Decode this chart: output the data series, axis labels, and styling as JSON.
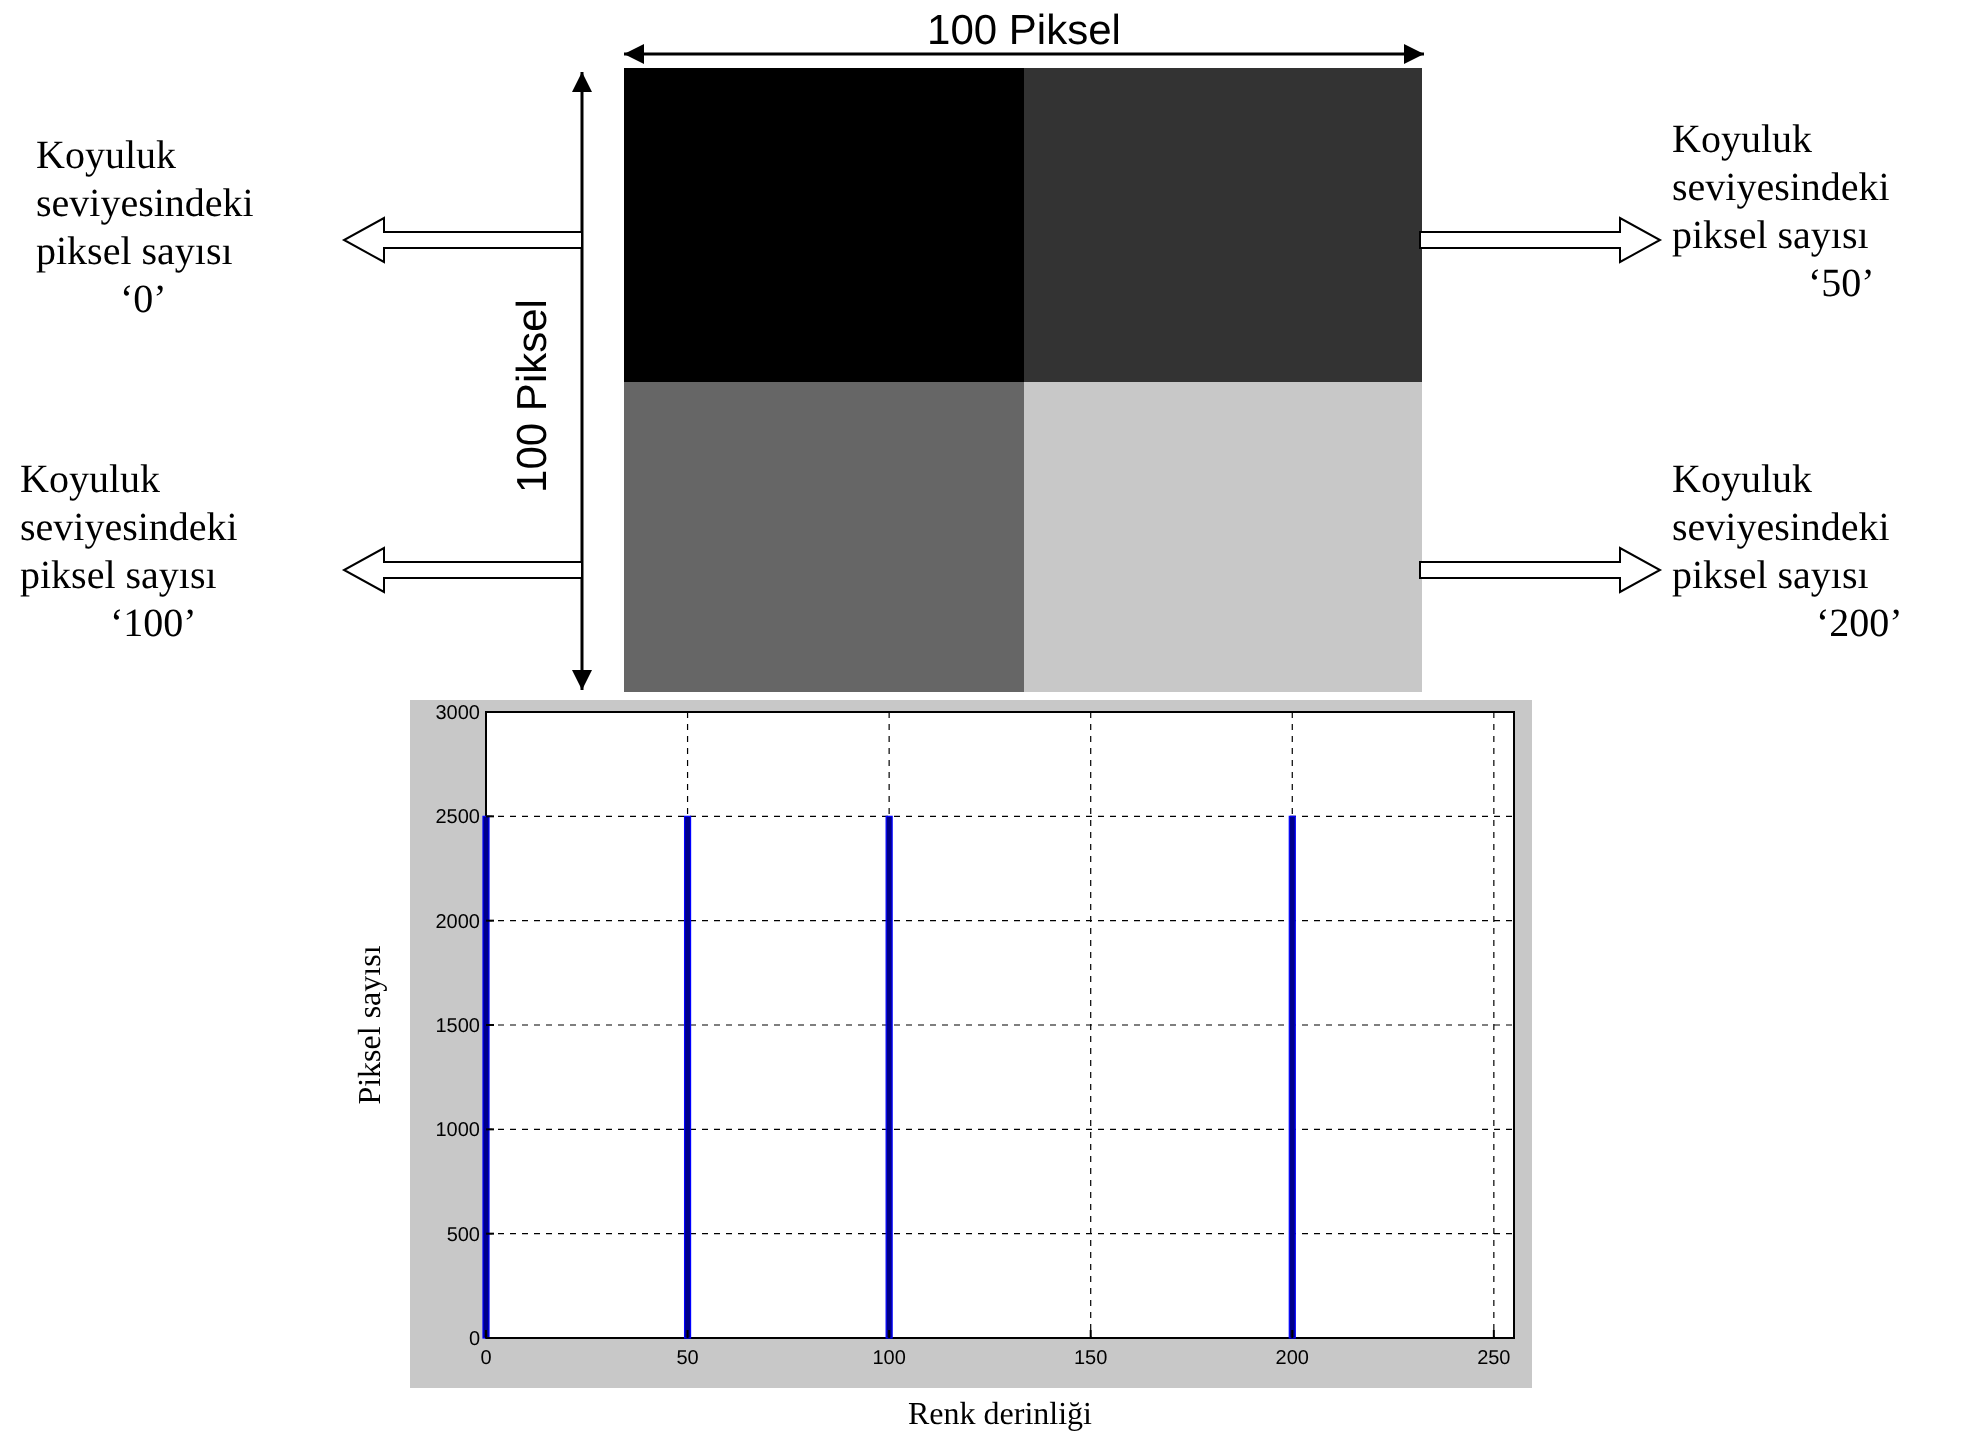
{
  "chart_data": {
    "type": "bar",
    "xlabel": "Renk derinliği",
    "ylabel": "Piksel sayısı",
    "x": [
      0,
      50,
      100,
      200
    ],
    "values": [
      2500,
      2500,
      2500,
      2500
    ],
    "color": "#00008b",
    "xlim": [
      0,
      255
    ],
    "xticks": [
      0,
      50,
      100,
      150,
      200,
      250
    ],
    "ylim": [
      0,
      3000
    ],
    "yticks": [
      0,
      500,
      1000,
      1500,
      2000,
      2500,
      3000
    ],
    "grid": true,
    "annotations": [
      "100 Piksel",
      "100 Piksel",
      "Koyuluk\nseviyesindeki\npiksel sayısı\n‘0’",
      "Koyuluk\nseviyesindeki\npiksel sayısı\n‘50’",
      "Koyuluk\nseviyesindeki\npiksel sayısı\n‘100’",
      "Koyuluk\nseviyesindeki\npiksel sayısı\n‘200’"
    ]
  }
}
